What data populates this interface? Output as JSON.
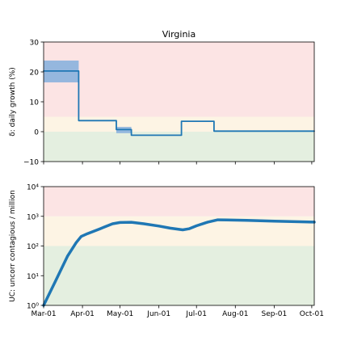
{
  "chart_data": [
    {
      "type": "line",
      "title": "Virginia",
      "ylabel": "δ: daily growth (%)",
      "xlabel": "",
      "xlim": [
        "2020-03-01",
        "2020-10-03"
      ],
      "ylim": [
        -10,
        30
      ],
      "yscale": "linear",
      "yticks": [
        -10,
        0,
        10,
        20,
        30
      ],
      "ytick_labels": [
        "−10",
        "0",
        "10",
        "20",
        "30"
      ],
      "grid": false,
      "bands": [
        {
          "from": -10,
          "to": 0,
          "color": "#e4efe0"
        },
        {
          "from": 0,
          "to": 5,
          "color": "#fdf4e4"
        },
        {
          "from": 5,
          "to": 30,
          "color": "#fce4e4"
        }
      ],
      "series": [
        {
          "color": "#1f77b4",
          "step": true,
          "points": [
            [
              "2020-03-01",
              20.3
            ],
            [
              "2020-03-29",
              20.3
            ],
            [
              "2020-03-29",
              3.7
            ],
            [
              "2020-04-28",
              3.7
            ],
            [
              "2020-04-28",
              0.7
            ],
            [
              "2020-05-10",
              0.7
            ],
            [
              "2020-05-10",
              -1.2
            ],
            [
              "2020-06-19",
              -1.2
            ],
            [
              "2020-06-19",
              3.5
            ],
            [
              "2020-07-15",
              3.5
            ],
            [
              "2020-07-15",
              0.2
            ],
            [
              "2020-10-03",
              0.2
            ]
          ],
          "uncertainty": [
            {
              "x0": "2020-03-01",
              "x1": "2020-03-29",
              "low": 16.5,
              "high": 23.8
            },
            {
              "x0": "2020-04-28",
              "x1": "2020-05-10",
              "low": -0.5,
              "high": 1.6
            }
          ]
        }
      ]
    },
    {
      "type": "line",
      "title": "",
      "ylabel": "UC: uncorr contagious / million",
      "xlabel": "",
      "xlim": [
        "2020-03-01",
        "2020-10-03"
      ],
      "ylim": [
        1,
        10000
      ],
      "yscale": "log",
      "yticks": [
        1,
        10,
        100,
        1000,
        10000
      ],
      "ytick_labels": [
        "10⁰",
        "10¹",
        "10²",
        "10³",
        "10⁴"
      ],
      "xticks": [
        "2020-03-01",
        "2020-04-01",
        "2020-05-01",
        "2020-06-01",
        "2020-07-01",
        "2020-08-01",
        "2020-09-01",
        "2020-10-01"
      ],
      "xtick_labels": [
        "Mar-01",
        "Apr-01",
        "May-01",
        "Jun-01",
        "Jul-01",
        "Aug-01",
        "Sep-01",
        "Oct-01"
      ],
      "grid": false,
      "bands": [
        {
          "from": 1,
          "to": 100,
          "color": "#e4efe0"
        },
        {
          "from": 100,
          "to": 1000,
          "color": "#fdf4e4"
        },
        {
          "from": 1000,
          "to": 10000,
          "color": "#fce4e4"
        }
      ],
      "series": [
        {
          "color": "#1f77b4",
          "step": false,
          "points": [
            [
              "2020-03-01",
              1
            ],
            [
              "2020-03-10",
              6
            ],
            [
              "2020-03-20",
              45
            ],
            [
              "2020-03-27",
              130
            ],
            [
              "2020-03-31",
              210
            ],
            [
              "2020-04-05",
              260
            ],
            [
              "2020-04-15",
              380
            ],
            [
              "2020-04-25",
              560
            ],
            [
              "2020-05-01",
              620
            ],
            [
              "2020-05-10",
              630
            ],
            [
              "2020-05-20",
              560
            ],
            [
              "2020-06-01",
              470
            ],
            [
              "2020-06-10",
              400
            ],
            [
              "2020-06-20",
              350
            ],
            [
              "2020-06-25",
              380
            ],
            [
              "2020-07-01",
              480
            ],
            [
              "2020-07-10",
              640
            ],
            [
              "2020-07-18",
              760
            ],
            [
              "2020-07-25",
              750
            ],
            [
              "2020-08-10",
              730
            ],
            [
              "2020-09-01",
              690
            ],
            [
              "2020-10-03",
              640
            ]
          ]
        }
      ]
    }
  ]
}
